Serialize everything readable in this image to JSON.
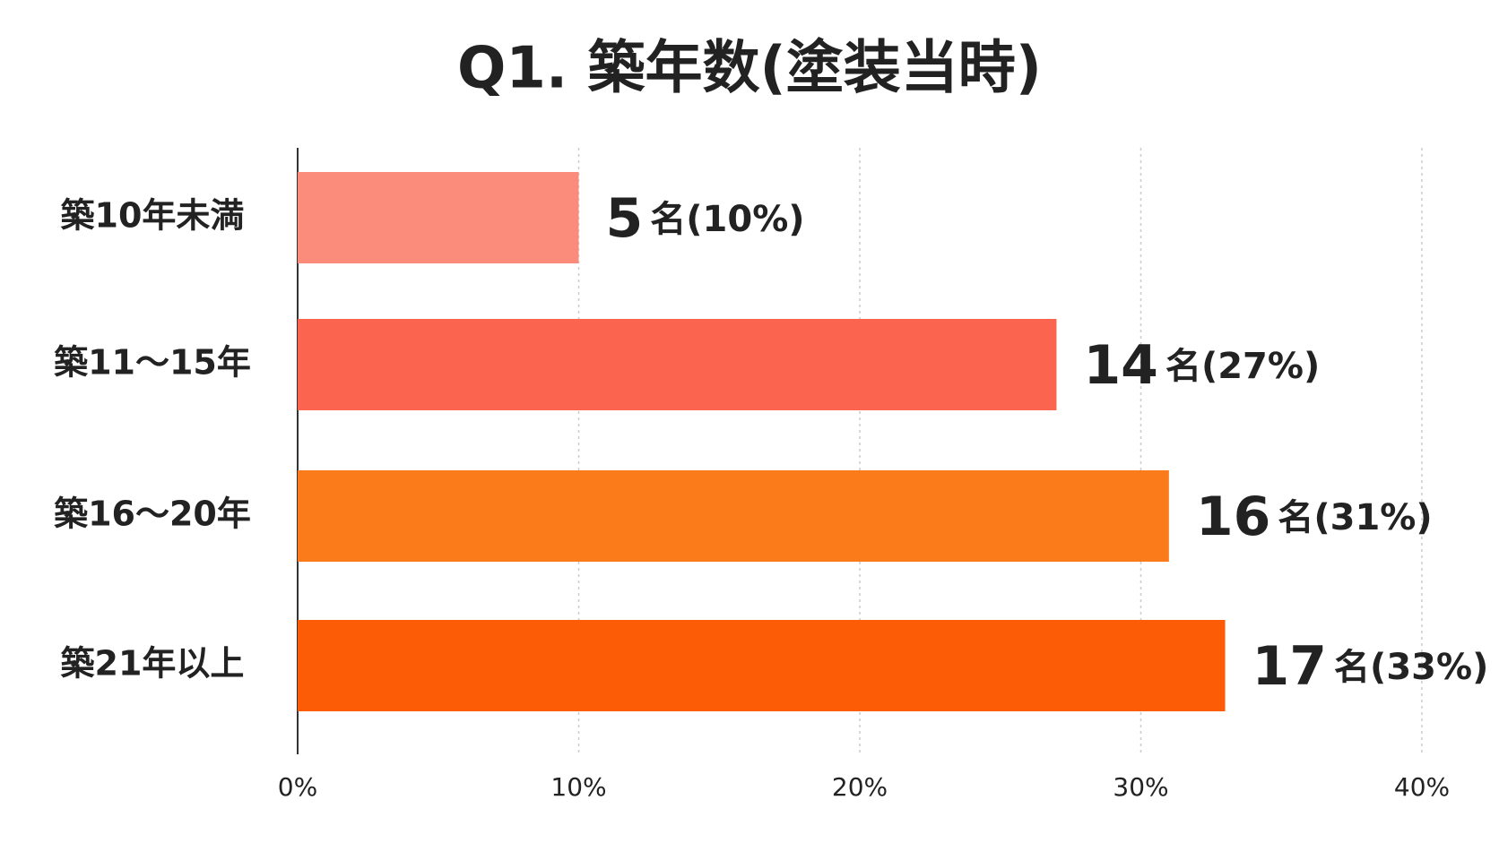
{
  "chart_data": {
    "type": "bar",
    "orientation": "horizontal",
    "title": "Q1. 築年数(塗装当時)",
    "categories": [
      "築10年未満",
      "築11〜15年",
      "築16〜20年",
      "築21年以上"
    ],
    "values": [
      10,
      27,
      31,
      33
    ],
    "value_labels": [
      "(10%)",
      "(27%)",
      "(31%)",
      "(33%)"
    ],
    "counts": [
      5,
      14,
      16,
      17
    ],
    "count_unit": "名",
    "colors": [
      "#fb8c7c",
      "#fb6550",
      "#fb7a1a",
      "#fb5c05"
    ],
    "xlim": [
      0,
      40
    ],
    "xticks": [
      {
        "value": 0,
        "label": "0%"
      },
      {
        "value": 10,
        "label": "10%"
      },
      {
        "value": 20,
        "label": "20%"
      },
      {
        "value": 30,
        "label": "30%"
      },
      {
        "value": 40,
        "label": "40%"
      }
    ],
    "grid": true
  }
}
